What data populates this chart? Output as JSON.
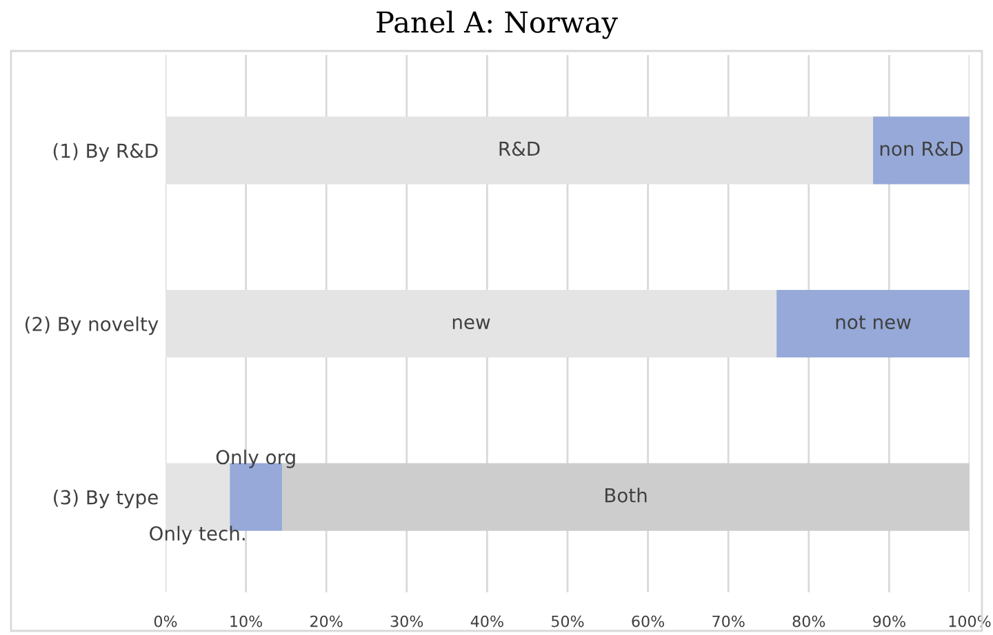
{
  "chart_data": {
    "type": "bar",
    "orientation": "horizontal",
    "stacked": true,
    "title": "Panel A: Norway",
    "categories": [
      "(1) By R&D",
      "(2) By novelty",
      "(3) By type"
    ],
    "series": [
      {
        "colors": [
          "#e4e4e4",
          "#e4e4e4",
          "#e4e4e4"
        ],
        "values": [
          88,
          76,
          8
        ],
        "value_labels": [
          "R&D",
          "new",
          "Only tech."
        ]
      },
      {
        "colors": [
          "#96a9d8",
          "#96a9d8",
          "#96a9d8"
        ],
        "values": [
          12,
          24,
          6.5
        ],
        "value_labels": [
          "non R&D",
          "not new",
          "Only org"
        ]
      },
      {
        "colors": [
          "#cdcdcd",
          "#cdcdcd",
          "#cdcdcd"
        ],
        "values": [
          null,
          null,
          85.5
        ],
        "value_labels": [
          null,
          null,
          "Both"
        ]
      }
    ],
    "xlim": [
      0,
      100
    ],
    "xticks": [
      {
        "value": 0,
        "label": "0%"
      },
      {
        "value": 10,
        "label": "10%"
      },
      {
        "value": 20,
        "label": "20%"
      },
      {
        "value": 30,
        "label": "30%"
      },
      {
        "value": 40,
        "label": "40%"
      },
      {
        "value": 50,
        "label": "50%"
      },
      {
        "value": 60,
        "label": "60%"
      },
      {
        "value": 70,
        "label": "70%"
      },
      {
        "value": 80,
        "label": "80%"
      },
      {
        "value": 90,
        "label": "90%"
      },
      {
        "value": 100,
        "label": "100%"
      }
    ],
    "grid": "x"
  }
}
